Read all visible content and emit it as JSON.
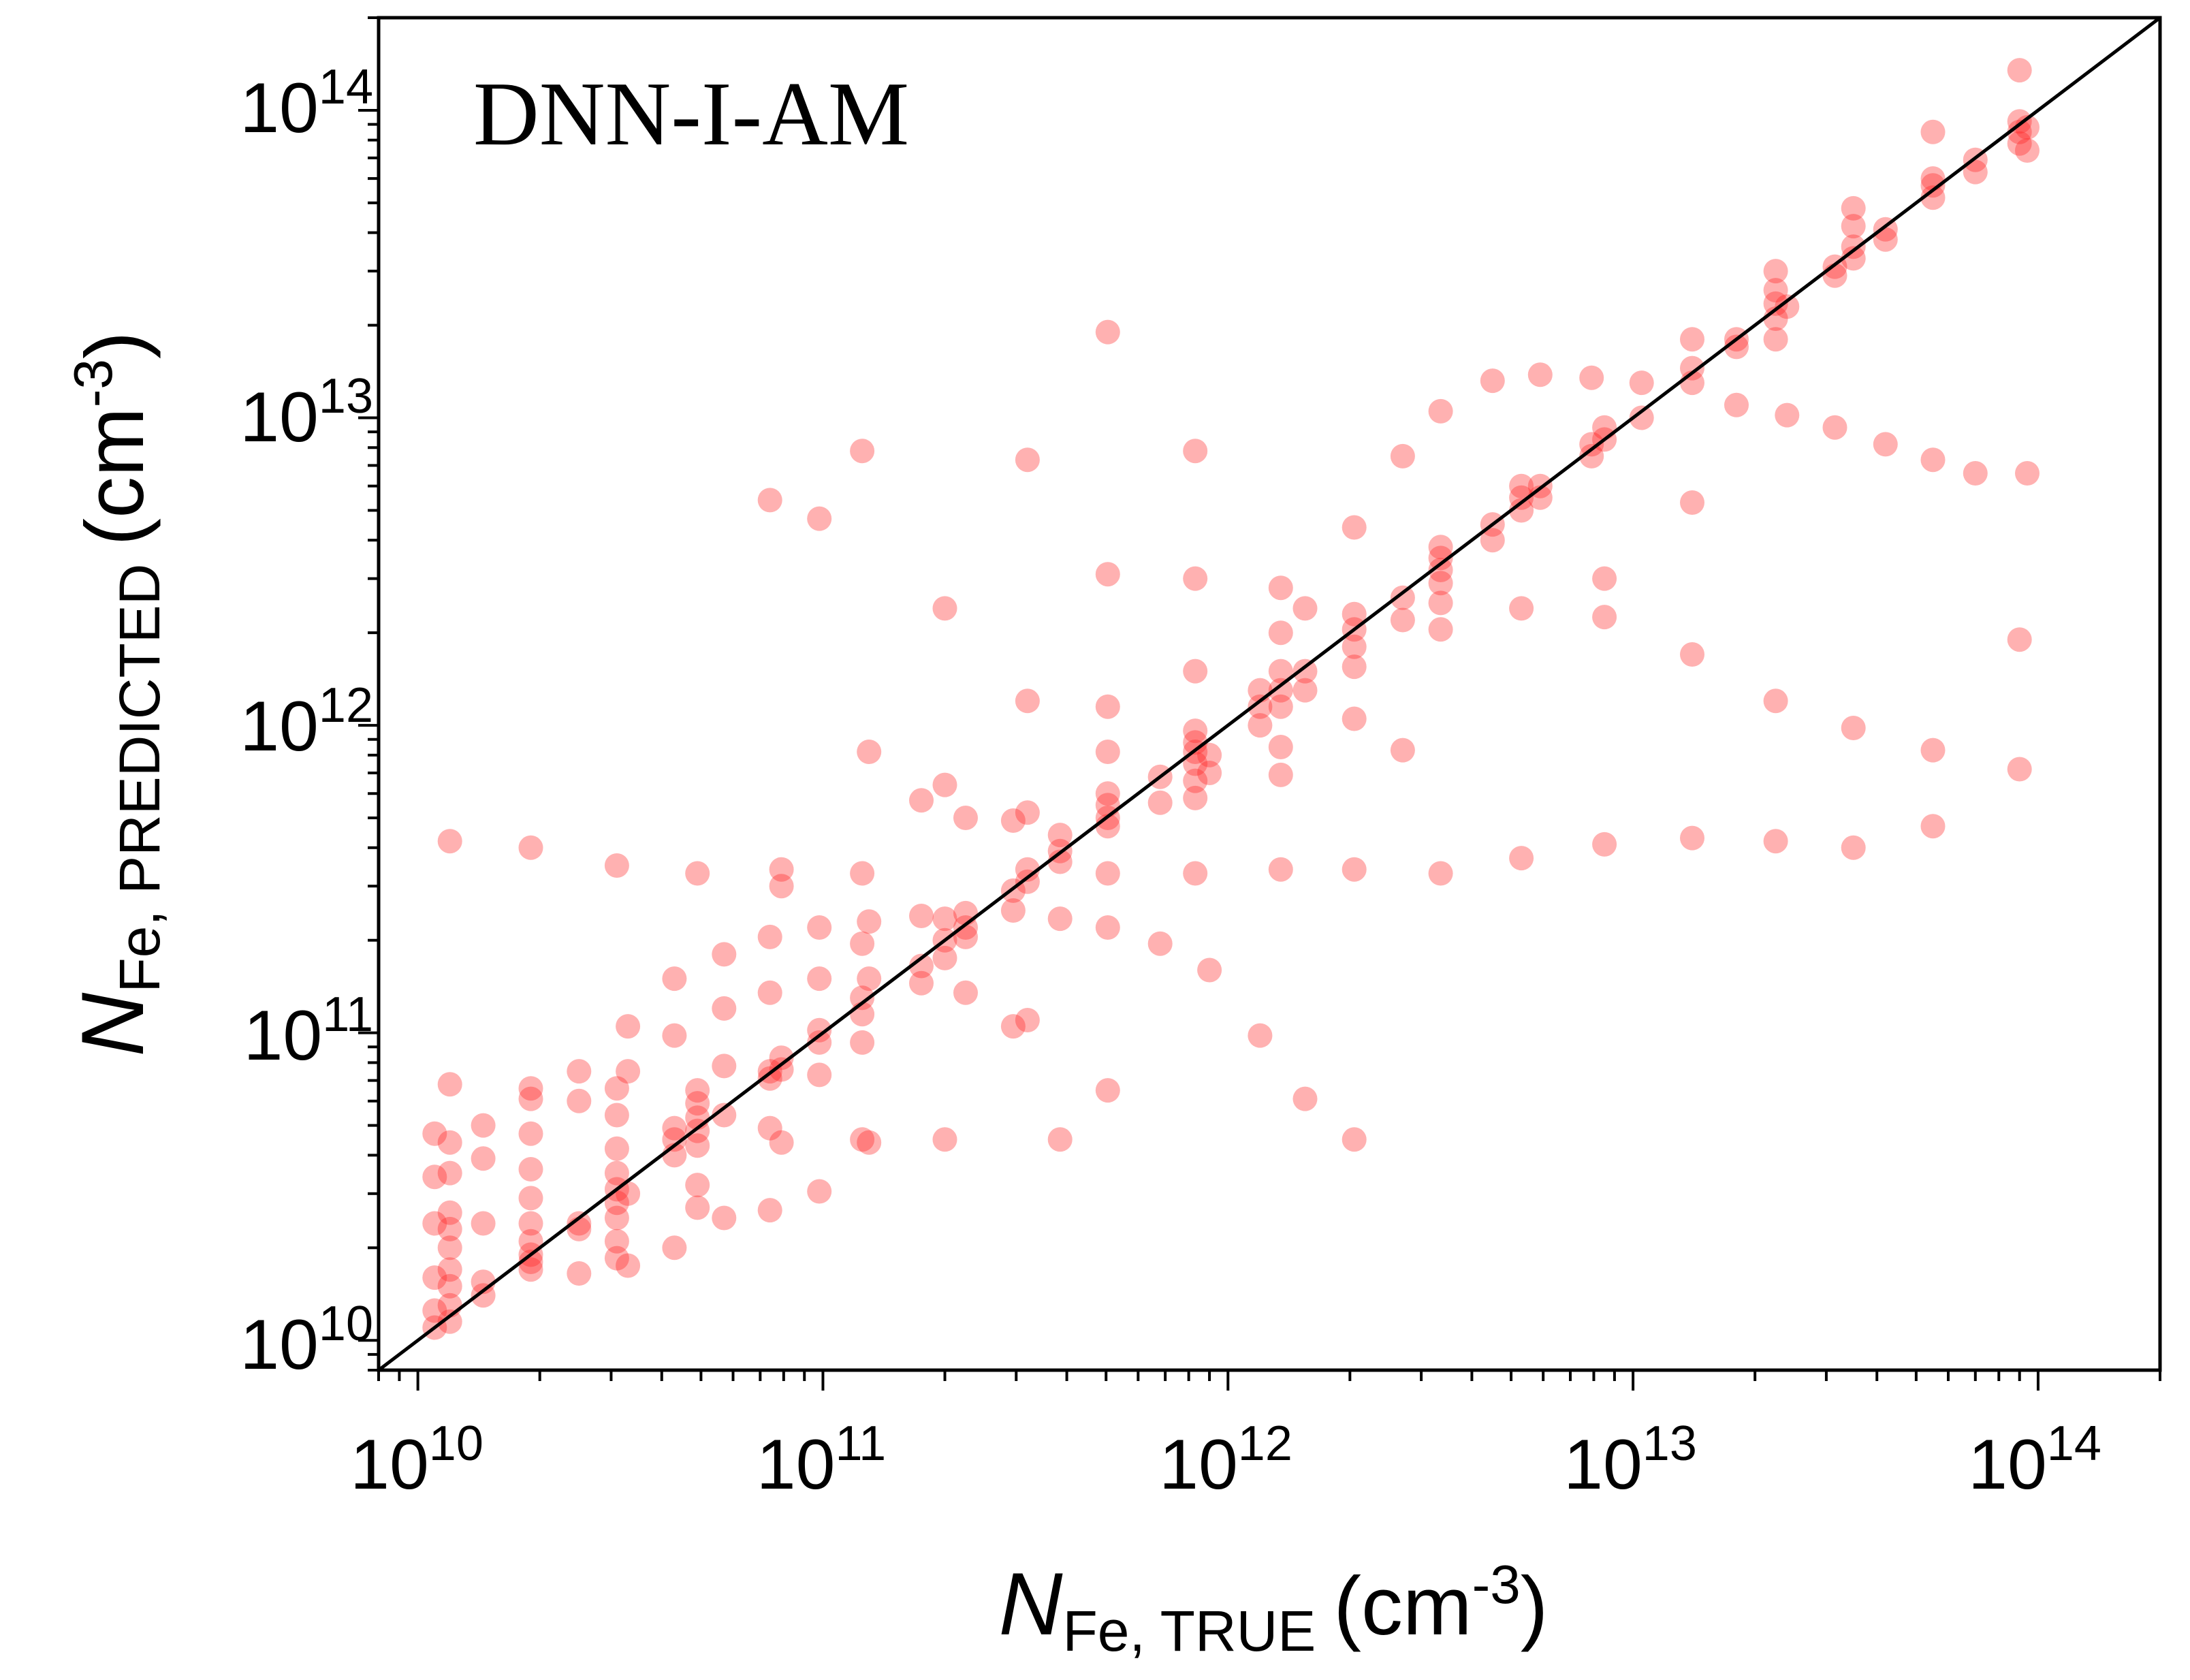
{
  "chart_data": {
    "type": "scatter",
    "annotation": "DNN-I-AM",
    "xlabel": {
      "symbol": "N",
      "subscript": "Fe, TRUE",
      "unit_prefix": "(cm",
      "unit_exp": "-3",
      "unit_suffix": ")"
    },
    "ylabel": {
      "symbol": "N",
      "subscript": "Fe, PREDICTED",
      "unit_prefix": "(cm",
      "unit_exp": "-3",
      "unit_suffix": ")"
    },
    "xscale": "log",
    "yscale": "log",
    "xlim": [
      8000000000.0,
      200000000000000.0
    ],
    "ylim": [
      8000000000.0,
      200000000000000.0
    ],
    "x_ticks": [
      {
        "base": "10",
        "exp": "10",
        "value": 10000000000.0
      },
      {
        "base": "10",
        "exp": "11",
        "value": 100000000000.0
      },
      {
        "base": "10",
        "exp": "12",
        "value": 1000000000000.0
      },
      {
        "base": "10",
        "exp": "13",
        "value": 10000000000000.0
      },
      {
        "base": "10",
        "exp": "14",
        "value": 100000000000000.0
      }
    ],
    "y_ticks": [
      {
        "base": "10",
        "exp": "10",
        "value": 10000000000.0
      },
      {
        "base": "10",
        "exp": "11",
        "value": 100000000000.0
      },
      {
        "base": "10",
        "exp": "12",
        "value": 1000000000000.0
      },
      {
        "base": "10",
        "exp": "13",
        "value": 10000000000000.0
      },
      {
        "base": "10",
        "exp": "14",
        "value": 100000000000000.0
      }
    ],
    "grid": false,
    "legend": "none",
    "reference_line": {
      "style": "y = x",
      "color": "#000000"
    },
    "marker_color": "#ff2020",
    "marker_opacity": 0.35,
    "points": [
      [
        11000000000.0,
        11000000000.0
      ],
      [
        11000000000.0,
        12500000000.0
      ],
      [
        11000000000.0,
        16000000000.0
      ],
      [
        11000000000.0,
        24000000000.0
      ],
      [
        11000000000.0,
        34000000000.0
      ],
      [
        11000000000.0,
        47000000000.0
      ],
      [
        12000000000.0,
        11500000000.0
      ],
      [
        12000000000.0,
        13000000000.0
      ],
      [
        12000000000.0,
        15000000000.0
      ],
      [
        12000000000.0,
        17000000000.0
      ],
      [
        12000000000.0,
        20000000000.0
      ],
      [
        12000000000.0,
        23000000000.0
      ],
      [
        12000000000.0,
        26000000000.0
      ],
      [
        12000000000.0,
        35000000000.0
      ],
      [
        12000000000.0,
        44000000000.0
      ],
      [
        12000000000.0,
        68000000000.0
      ],
      [
        12000000000.0,
        420000000000.0
      ],
      [
        14500000000.0,
        14000000000.0
      ],
      [
        14500000000.0,
        15500000000.0
      ],
      [
        14500000000.0,
        24000000000.0
      ],
      [
        14500000000.0,
        39000000000.0
      ],
      [
        14500000000.0,
        50000000000.0
      ],
      [
        19000000000.0,
        17000000000.0
      ],
      [
        19000000000.0,
        18000000000.0
      ],
      [
        19000000000.0,
        19000000000.0
      ],
      [
        19000000000.0,
        21000000000.0
      ],
      [
        19000000000.0,
        24000000000.0
      ],
      [
        19000000000.0,
        29000000000.0
      ],
      [
        19000000000.0,
        36000000000.0
      ],
      [
        19000000000.0,
        47000000000.0
      ],
      [
        19000000000.0,
        61000000000.0
      ],
      [
        19000000000.0,
        66000000000.0
      ],
      [
        19000000000.0,
        400000000000.0
      ],
      [
        25000000000.0,
        16500000000.0
      ],
      [
        25000000000.0,
        23000000000.0
      ],
      [
        25000000000.0,
        24000000000.0
      ],
      [
        25000000000.0,
        60000000000.0
      ],
      [
        25000000000.0,
        75000000000.0
      ],
      [
        31000000000.0,
        18500000000.0
      ],
      [
        31000000000.0,
        21000000000.0
      ],
      [
        31000000000.0,
        25000000000.0
      ],
      [
        31000000000.0,
        28000000000.0
      ],
      [
        31000000000.0,
        31000000000.0
      ],
      [
        31000000000.0,
        35000000000.0
      ],
      [
        31000000000.0,
        42000000000.0
      ],
      [
        31000000000.0,
        54000000000.0
      ],
      [
        31000000000.0,
        66000000000.0
      ],
      [
        31000000000.0,
        350000000000.0
      ],
      [
        33000000000.0,
        17500000000.0
      ],
      [
        33000000000.0,
        30000000000.0
      ],
      [
        33000000000.0,
        75000000000.0
      ],
      [
        33000000000.0,
        105000000000.0
      ],
      [
        43000000000.0,
        20000000000.0
      ],
      [
        43000000000.0,
        40000000000.0
      ],
      [
        43000000000.0,
        45000000000.0
      ],
      [
        43000000000.0,
        49000000000.0
      ],
      [
        43000000000.0,
        98000000000.0
      ],
      [
        43000000000.0,
        150000000000.0
      ],
      [
        49000000000.0,
        27000000000.0
      ],
      [
        49000000000.0,
        32000000000.0
      ],
      [
        49000000000.0,
        43000000000.0
      ],
      [
        49000000000.0,
        48000000000.0
      ],
      [
        49000000000.0,
        53000000000.0
      ],
      [
        49000000000.0,
        59000000000.0
      ],
      [
        49000000000.0,
        65000000000.0
      ],
      [
        49000000000.0,
        330000000000.0
      ],
      [
        57000000000.0,
        25000000000.0
      ],
      [
        57000000000.0,
        54000000000.0
      ],
      [
        57000000000.0,
        78000000000.0
      ],
      [
        57000000000.0,
        120000000000.0
      ],
      [
        57000000000.0,
        180000000000.0
      ],
      [
        74000000000.0,
        26500000000.0
      ],
      [
        74000000000.0,
        49000000000.0
      ],
      [
        74000000000.0,
        71000000000.0
      ],
      [
        74000000000.0,
        75000000000.0
      ],
      [
        74000000000.0,
        135000000000.0
      ],
      [
        74000000000.0,
        205000000000.0
      ],
      [
        74000000000.0,
        5400000000000.0
      ],
      [
        79000000000.0,
        44000000000.0
      ],
      [
        79000000000.0,
        76000000000.0
      ],
      [
        79000000000.0,
        83000000000.0
      ],
      [
        79000000000.0,
        300000000000.0
      ],
      [
        79000000000.0,
        340000000000.0
      ],
      [
        98000000000.0,
        30500000000.0
      ],
      [
        98000000000.0,
        73000000000.0
      ],
      [
        98000000000.0,
        93000000000.0
      ],
      [
        98000000000.0,
        102000000000.0
      ],
      [
        98000000000.0,
        150000000000.0
      ],
      [
        98000000000.0,
        220000000000.0
      ],
      [
        98000000000.0,
        4700000000000.0
      ],
      [
        125000000000.0,
        45000000000.0
      ],
      [
        125000000000.0,
        93000000000.0
      ],
      [
        125000000000.0,
        115000000000.0
      ],
      [
        125000000000.0,
        130000000000.0
      ],
      [
        125000000000.0,
        195000000000.0
      ],
      [
        125000000000.0,
        330000000000.0
      ],
      [
        125000000000.0,
        7800000000000.0
      ],
      [
        130000000000.0,
        44000000000.0
      ],
      [
        130000000000.0,
        150000000000.0
      ],
      [
        130000000000.0,
        230000000000.0
      ],
      [
        130000000000.0,
        820000000000.0
      ],
      [
        175000000000.0,
        145000000000.0
      ],
      [
        175000000000.0,
        165000000000.0
      ],
      [
        175000000000.0,
        240000000000.0
      ],
      [
        175000000000.0,
        570000000000.0
      ],
      [
        200000000000.0,
        45000000000.0
      ],
      [
        200000000000.0,
        175000000000.0
      ],
      [
        200000000000.0,
        200000000000.0
      ],
      [
        200000000000.0,
        235000000000.0
      ],
      [
        200000000000.0,
        640000000000.0
      ],
      [
        200000000000.0,
        2400000000000.0
      ],
      [
        225000000000.0,
        135000000000.0
      ],
      [
        225000000000.0,
        205000000000.0
      ],
      [
        225000000000.0,
        220000000000.0
      ],
      [
        225000000000.0,
        245000000000.0
      ],
      [
        225000000000.0,
        500000000000.0
      ],
      [
        295000000000.0,
        105000000000.0
      ],
      [
        295000000000.0,
        250000000000.0
      ],
      [
        295000000000.0,
        290000000000.0
      ],
      [
        295000000000.0,
        490000000000.0
      ],
      [
        320000000000.0,
        110000000000.0
      ],
      [
        320000000000.0,
        310000000000.0
      ],
      [
        320000000000.0,
        340000000000.0
      ],
      [
        320000000000.0,
        520000000000.0
      ],
      [
        320000000000.0,
        1200000000000.0
      ],
      [
        320000000000.0,
        7300000000000.0
      ],
      [
        385000000000.0,
        45000000000.0
      ],
      [
        385000000000.0,
        235000000000.0
      ],
      [
        385000000000.0,
        360000000000.0
      ],
      [
        385000000000.0,
        390000000000.0
      ],
      [
        385000000000.0,
        440000000000.0
      ],
      [
        505000000000.0,
        65000000000.0
      ],
      [
        505000000000.0,
        220000000000.0
      ],
      [
        505000000000.0,
        330000000000.0
      ],
      [
        505000000000.0,
        470000000000.0
      ],
      [
        505000000000.0,
        500000000000.0
      ],
      [
        505000000000.0,
        550000000000.0
      ],
      [
        505000000000.0,
        600000000000.0
      ],
      [
        505000000000.0,
        820000000000.0
      ],
      [
        505000000000.0,
        1150000000000.0
      ],
      [
        505000000000.0,
        3100000000000.0
      ],
      [
        505000000000.0,
        19000000000000.0
      ],
      [
        680000000000.0,
        195000000000.0
      ],
      [
        680000000000.0,
        560000000000.0
      ],
      [
        680000000000.0,
        680000000000.0
      ],
      [
        830000000000.0,
        330000000000.0
      ],
      [
        830000000000.0,
        580000000000.0
      ],
      [
        830000000000.0,
        660000000000.0
      ],
      [
        830000000000.0,
        750000000000.0
      ],
      [
        830000000000.0,
        820000000000.0
      ],
      [
        830000000000.0,
        880000000000.0
      ],
      [
        830000000000.0,
        960000000000.0
      ],
      [
        830000000000.0,
        1500000000000.0
      ],
      [
        830000000000.0,
        3000000000000.0
      ],
      [
        830000000000.0,
        7800000000000.0
      ],
      [
        900000000000.0,
        160000000000.0
      ],
      [
        900000000000.0,
        700000000000.0
      ],
      [
        900000000000.0,
        800000000000.0
      ],
      [
        1200000000000.0,
        98000000000.0
      ],
      [
        1200000000000.0,
        1000000000000.0
      ],
      [
        1200000000000.0,
        1150000000000.0
      ],
      [
        1200000000000.0,
        1300000000000.0
      ],
      [
        1350000000000.0,
        340000000000.0
      ],
      [
        1350000000000.0,
        690000000000.0
      ],
      [
        1350000000000.0,
        850000000000.0
      ],
      [
        1350000000000.0,
        1150000000000.0
      ],
      [
        1350000000000.0,
        1300000000000.0
      ],
      [
        1350000000000.0,
        1500000000000.0
      ],
      [
        1350000000000.0,
        2000000000000.0
      ],
      [
        1350000000000.0,
        2800000000000.0
      ],
      [
        1550000000000.0,
        61000000000.0
      ],
      [
        1550000000000.0,
        1300000000000.0
      ],
      [
        1550000000000.0,
        1500000000000.0
      ],
      [
        1550000000000.0,
        2400000000000.0
      ],
      [
        2050000000000.0,
        45000000000.0
      ],
      [
        2050000000000.0,
        340000000000.0
      ],
      [
        2050000000000.0,
        1050000000000.0
      ],
      [
        2050000000000.0,
        1550000000000.0
      ],
      [
        2050000000000.0,
        1800000000000.0
      ],
      [
        2050000000000.0,
        2050000000000.0
      ],
      [
        2050000000000.0,
        2300000000000.0
      ],
      [
        2050000000000.0,
        4400000000000.0
      ],
      [
        2700000000000.0,
        830000000000.0
      ],
      [
        2700000000000.0,
        2200000000000.0
      ],
      [
        2700000000000.0,
        2600000000000.0
      ],
      [
        2700000000000.0,
        7500000000000.0
      ],
      [
        3350000000000.0,
        330000000000.0
      ],
      [
        3350000000000.0,
        2050000000000.0
      ],
      [
        3350000000000.0,
        2500000000000.0
      ],
      [
        3350000000000.0,
        2900000000000.0
      ],
      [
        3350000000000.0,
        3200000000000.0
      ],
      [
        3350000000000.0,
        3500000000000.0
      ],
      [
        3350000000000.0,
        3800000000000.0
      ],
      [
        3350000000000.0,
        10500000000000.0
      ],
      [
        4500000000000.0,
        4000000000000.0
      ],
      [
        4500000000000.0,
        4500000000000.0
      ],
      [
        4500000000000.0,
        13200000000000.0
      ],
      [
        5300000000000.0,
        370000000000.0
      ],
      [
        5300000000000.0,
        2400000000000.0
      ],
      [
        5300000000000.0,
        5000000000000.0
      ],
      [
        5300000000000.0,
        5500000000000.0
      ],
      [
        5300000000000.0,
        6000000000000.0
      ],
      [
        5900000000000.0,
        5500000000000.0
      ],
      [
        5900000000000.0,
        6000000000000.0
      ],
      [
        5900000000000.0,
        13800000000000.0
      ],
      [
        7900000000000.0,
        7500000000000.0
      ],
      [
        7900000000000.0,
        8200000000000.0
      ],
      [
        7900000000000.0,
        13500000000000.0
      ],
      [
        8500000000000.0,
        410000000000.0
      ],
      [
        8500000000000.0,
        2250000000000.0
      ],
      [
        8500000000000.0,
        3000000000000.0
      ],
      [
        8500000000000.0,
        8500000000000.0
      ],
      [
        8500000000000.0,
        9300000000000.0
      ],
      [
        10500000000000.0,
        10000000000000.0
      ],
      [
        10500000000000.0,
        13000000000000.0
      ],
      [
        14000000000000.0,
        430000000000.0
      ],
      [
        14000000000000.0,
        1700000000000.0
      ],
      [
        14000000000000.0,
        5300000000000.0
      ],
      [
        14000000000000.0,
        13000000000000.0
      ],
      [
        14000000000000.0,
        14500000000000.0
      ],
      [
        14000000000000.0,
        18000000000000.0
      ],
      [
        18000000000000.0,
        11000000000000.0
      ],
      [
        18000000000000.0,
        17000000000000.0
      ],
      [
        18000000000000.0,
        18000000000000.0
      ],
      [
        22500000000000.0,
        420000000000.0
      ],
      [
        22500000000000.0,
        1200000000000.0
      ],
      [
        22500000000000.0,
        18000000000000.0
      ],
      [
        22500000000000.0,
        21000000000000.0
      ],
      [
        22500000000000.0,
        23500000000000.0
      ],
      [
        22500000000000.0,
        26000000000000.0
      ],
      [
        22500000000000.0,
        30000000000000.0
      ],
      [
        24000000000000.0,
        10200000000000.0
      ],
      [
        24000000000000.0,
        23000000000000.0
      ],
      [
        31500000000000.0,
        9300000000000.0
      ],
      [
        31500000000000.0,
        29000000000000.0
      ],
      [
        31500000000000.0,
        31000000000000.0
      ],
      [
        35000000000000.0,
        400000000000.0
      ],
      [
        35000000000000.0,
        980000000000.0
      ],
      [
        35000000000000.0,
        33000000000000.0
      ],
      [
        35000000000000.0,
        36000000000000.0
      ],
      [
        35000000000000.0,
        42000000000000.0
      ],
      [
        35000000000000.0,
        48000000000000.0
      ],
      [
        42000000000000.0,
        8200000000000.0
      ],
      [
        42000000000000.0,
        38000000000000.0
      ],
      [
        42000000000000.0,
        41000000000000.0
      ],
      [
        55000000000000.0,
        470000000000.0
      ],
      [
        55000000000000.0,
        830000000000.0
      ],
      [
        55000000000000.0,
        7300000000000.0
      ],
      [
        55000000000000.0,
        52000000000000.0
      ],
      [
        55000000000000.0,
        57000000000000.0
      ],
      [
        55000000000000.0,
        60000000000000.0
      ],
      [
        55000000000000.0,
        85000000000000.0
      ],
      [
        70000000000000.0,
        6600000000000.0
      ],
      [
        70000000000000.0,
        63000000000000.0
      ],
      [
        70000000000000.0,
        69000000000000.0
      ],
      [
        90000000000000.0,
        720000000000.0
      ],
      [
        90000000000000.0,
        1900000000000.0
      ],
      [
        90000000000000.0,
        78000000000000.0
      ],
      [
        90000000000000.0,
        85000000000000.0
      ],
      [
        90000000000000.0,
        92000000000000.0
      ],
      [
        90000000000000.0,
        135000000000000.0
      ],
      [
        94000000000000.0,
        6600000000000.0
      ],
      [
        94000000000000.0,
        74000000000000.0
      ],
      [
        94000000000000.0,
        88000000000000.0
      ]
    ]
  }
}
